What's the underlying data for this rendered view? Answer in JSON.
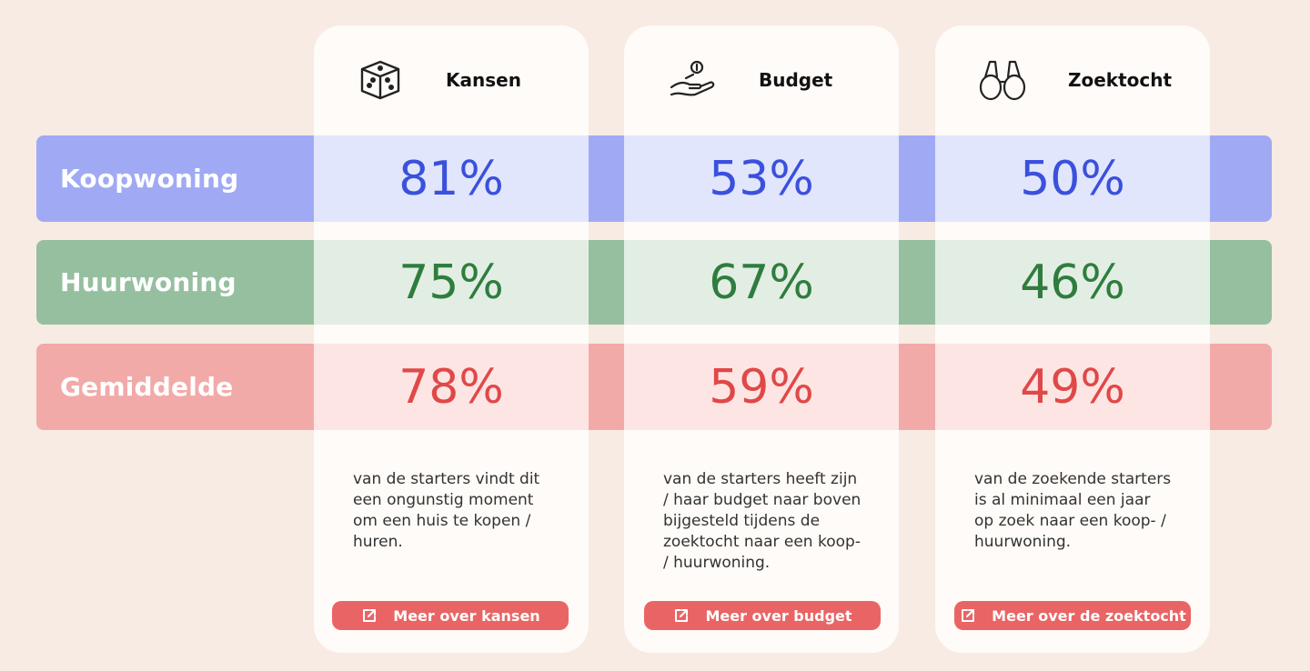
{
  "columns": [
    {
      "title": "Kansen",
      "icon": "dice-icon",
      "description": "van de starters vindt dit een ongunstig moment om een huis te kopen / huren.",
      "button_label": "Meer over kansen"
    },
    {
      "title": "Budget",
      "icon": "hand-money-icon",
      "description": "van de starters heeft zijn / haar budget naar boven bijgesteld tijdens de zoektocht naar een koop- / huurwoning.",
      "button_label": "Meer over budget"
    },
    {
      "title": "Zoektocht",
      "icon": "binoculars-icon",
      "description": "van de zoekende starters is al minimaal een jaar op zoek naar een koop- / huurwoning.",
      "button_label": "Meer over de zoektocht"
    }
  ],
  "rows": [
    {
      "label": "Koopwoning",
      "values": [
        "81%",
        "53%",
        "50%"
      ],
      "band_color": "#a0aaf4",
      "cell_color": "#e1e6fd",
      "text_color": "#3b50dc"
    },
    {
      "label": "Huurwoning",
      "values": [
        "75%",
        "67%",
        "46%"
      ],
      "band_color": "#96bf9f",
      "cell_color": "#e2eee4",
      "text_color": "#2f7d3e"
    },
    {
      "label": "Gemiddelde",
      "values": [
        "78%",
        "59%",
        "49%"
      ],
      "band_color": "#f2aaa8",
      "cell_color": "#fde5e4",
      "text_color": "#e04848"
    }
  ],
  "colors": {
    "background": "#f7ebe3",
    "card": "#fefbf8",
    "button": "#e96565"
  }
}
